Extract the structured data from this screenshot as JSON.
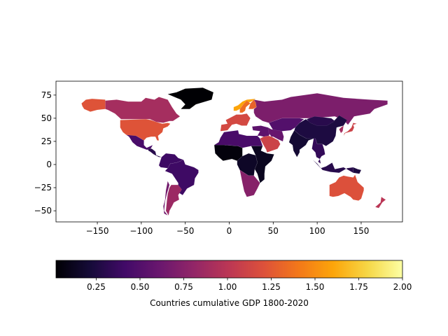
{
  "chart_data": {
    "type": "choropleth",
    "title": "",
    "xlabel": "",
    "ylabel": "",
    "xlim": [
      -197,
      197
    ],
    "ylim": [
      -62,
      90
    ],
    "x_ticks": [
      -150,
      -100,
      -50,
      0,
      50,
      100,
      150
    ],
    "x_tick_labels": [
      "−150",
      "−100",
      "−50",
      "0",
      "50",
      "100",
      "150"
    ],
    "y_ticks": [
      -50,
      -25,
      0,
      25,
      50,
      75
    ],
    "y_tick_labels": [
      "−50",
      "−25",
      "0",
      "25",
      "50",
      "75"
    ],
    "colormap": "inferno",
    "colorbar": {
      "label": "Countries cumulative GDP 1800-2020",
      "orientation": "horizontal",
      "range": [
        0.02,
        2.0
      ],
      "ticks": [
        0.25,
        0.5,
        0.75,
        1.0,
        1.25,
        1.5,
        1.75,
        2.0
      ],
      "tick_labels": [
        "0.25",
        "0.50",
        "0.75",
        "1.00",
        "1.25",
        "1.50",
        "1.75",
        "2.00"
      ]
    },
    "regions": [
      {
        "name": "Canada",
        "value": 0.9
      },
      {
        "name": "United States",
        "value": 1.22
      },
      {
        "name": "Alaska",
        "value": 1.22
      },
      {
        "name": "Greenland",
        "value": 0.0
      },
      {
        "name": "Mexico",
        "value": 0.45
      },
      {
        "name": "Central America",
        "value": 0.3
      },
      {
        "name": "Brazil",
        "value": 0.4
      },
      {
        "name": "Northern South America",
        "value": 0.4
      },
      {
        "name": "Argentina",
        "value": 0.85
      },
      {
        "name": "Chile",
        "value": 0.65
      },
      {
        "name": "West Africa",
        "value": 0.05
      },
      {
        "name": "North Africa",
        "value": 0.45
      },
      {
        "name": "East Africa",
        "value": 0.12
      },
      {
        "name": "Central Africa",
        "value": 0.15
      },
      {
        "name": "Southern Africa",
        "value": 0.75
      },
      {
        "name": "Western Europe",
        "value": 1.15
      },
      {
        "name": "Norway",
        "value": 1.6
      },
      {
        "name": "Sweden",
        "value": 1.35
      },
      {
        "name": "Finland",
        "value": 1.3
      },
      {
        "name": "Russia",
        "value": 0.7
      },
      {
        "name": "Central Asia",
        "value": 0.5
      },
      {
        "name": "Middle East",
        "value": 0.55
      },
      {
        "name": "Saudi Arabia",
        "value": 1.1
      },
      {
        "name": "Iran",
        "value": 0.6
      },
      {
        "name": "China",
        "value": 0.25
      },
      {
        "name": "Mongolia",
        "value": 0.3
      },
      {
        "name": "India",
        "value": 0.2
      },
      {
        "name": "Southeast Asia",
        "value": 0.35
      },
      {
        "name": "Japan",
        "value": 1.1
      },
      {
        "name": "Korea",
        "value": 0.9
      },
      {
        "name": "Indonesia",
        "value": 0.3
      },
      {
        "name": "Papua New Guinea",
        "value": 0.25
      },
      {
        "name": "Australia",
        "value": 1.2
      },
      {
        "name": "New Zealand",
        "value": 1.0
      }
    ]
  }
}
